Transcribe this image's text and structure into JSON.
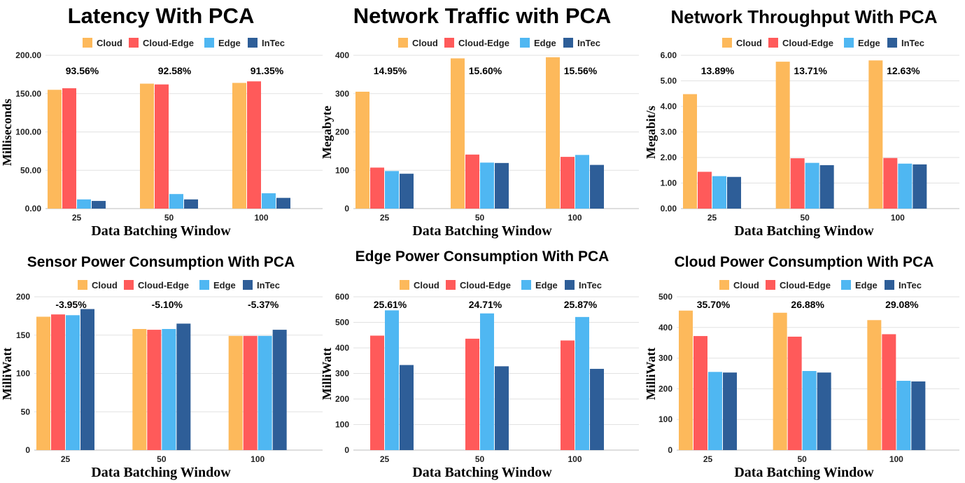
{
  "colors": {
    "Cloud": "#FDB95B",
    "Cloud-Edge": "#FF5A5A",
    "Edge": "#4FB7F2",
    "InTec": "#2E5E98"
  },
  "chart_data": [
    {
      "type": "bar",
      "title": "Latency With PCA",
      "xlabel": "Data Batching Window",
      "ylabel": "Milliseconds",
      "categories": [
        "25",
        "50",
        "100"
      ],
      "yticks": [
        "0.00",
        "50.00",
        "100.00",
        "150.00",
        "200.00"
      ],
      "ylim": [
        0,
        200
      ],
      "legend": "top",
      "annotations": [
        "93.56%",
        "92.58%",
        "91.35%"
      ],
      "series": [
        {
          "name": "Cloud",
          "values": [
            155,
            163,
            164
          ]
        },
        {
          "name": "Cloud-Edge",
          "values": [
            157,
            162,
            166
          ]
        },
        {
          "name": "Edge",
          "values": [
            12,
            19,
            20
          ]
        },
        {
          "name": "InTec",
          "values": [
            10,
            12,
            14
          ]
        }
      ]
    },
    {
      "type": "bar",
      "title": "Network Traffic with PCA",
      "xlabel": "Data Batching Window",
      "ylabel": "Megabyte",
      "categories": [
        "25",
        "50",
        "100"
      ],
      "yticks": [
        "0",
        "100",
        "200",
        "300",
        "400"
      ],
      "ylim": [
        0,
        400
      ],
      "legend": "top",
      "annotations": [
        "14.95%",
        "15.60%",
        "15.56%"
      ],
      "series": [
        {
          "name": "Cloud",
          "values": [
            305,
            392,
            395
          ]
        },
        {
          "name": "Cloud-Edge",
          "values": [
            107,
            141,
            135
          ]
        },
        {
          "name": "Edge",
          "values": [
            98,
            120,
            140
          ]
        },
        {
          "name": "InTec",
          "values": [
            91,
            119,
            114
          ]
        }
      ]
    },
    {
      "type": "bar",
      "title": "Network Throughput With PCA",
      "xlabel": "Data Batching Window",
      "ylabel": "Megabit/s",
      "categories": [
        "25",
        "50",
        "100"
      ],
      "yticks": [
        "0.00",
        "1.00",
        "2.00",
        "3.00",
        "4.00",
        "5.00",
        "6.00"
      ],
      "ylim": [
        0,
        6
      ],
      "legend": "top",
      "annotations": [
        "13.89%",
        "13.71%",
        "12.63%"
      ],
      "series": [
        {
          "name": "Cloud",
          "values": [
            4.48,
            5.75,
            5.8
          ]
        },
        {
          "name": "Cloud-Edge",
          "values": [
            1.44,
            1.97,
            1.98
          ]
        },
        {
          "name": "Edge",
          "values": [
            1.27,
            1.79,
            1.76
          ]
        },
        {
          "name": "InTec",
          "values": [
            1.24,
            1.7,
            1.73
          ]
        }
      ]
    },
    {
      "type": "bar",
      "title": "Sensor Power Consumption With PCA",
      "xlabel": "Data Batching Window",
      "ylabel": "MilliWatt",
      "categories": [
        "25",
        "50",
        "100"
      ],
      "yticks": [
        "0",
        "50",
        "100",
        "150",
        "200"
      ],
      "ylim": [
        0,
        200
      ],
      "legend": "top",
      "annotations": [
        "-3.95%",
        "-5.10%",
        "-5.37%"
      ],
      "series": [
        {
          "name": "Cloud",
          "values": [
            174,
            158,
            149
          ]
        },
        {
          "name": "Cloud-Edge",
          "values": [
            177,
            157,
            149
          ]
        },
        {
          "name": "Edge",
          "values": [
            176,
            158,
            149
          ]
        },
        {
          "name": "InTec",
          "values": [
            184,
            165,
            157
          ]
        }
      ]
    },
    {
      "type": "bar",
      "title": "Edge Power Consumption With PCA",
      "xlabel": "Data Batching Window",
      "ylabel": "MilliWatt",
      "categories": [
        "25",
        "50",
        "100"
      ],
      "yticks": [
        "0",
        "100",
        "200",
        "300",
        "400",
        "500",
        "600"
      ],
      "ylim": [
        0,
        600
      ],
      "legend": "top",
      "annotations": [
        "25.61%",
        "24.71%",
        "25.87%"
      ],
      "series": [
        {
          "name": "Cloud",
          "values": [
            0,
            0,
            0
          ]
        },
        {
          "name": "Cloud-Edge",
          "values": [
            448,
            436,
            429
          ]
        },
        {
          "name": "Edge",
          "values": [
            547,
            535,
            521
          ]
        },
        {
          "name": "InTec",
          "values": [
            333,
            328,
            318
          ]
        }
      ]
    },
    {
      "type": "bar",
      "title": "Cloud Power Consumption With PCA",
      "xlabel": "Data Batching Window",
      "ylabel": "MilliWatt",
      "categories": [
        "25",
        "50",
        "100"
      ],
      "yticks": [
        "0",
        "100",
        "200",
        "300",
        "400",
        "500"
      ],
      "ylim": [
        0,
        500
      ],
      "legend": "top",
      "annotations": [
        "35.70%",
        "26.88%",
        "29.08%"
      ],
      "series": [
        {
          "name": "Cloud",
          "values": [
            455,
            448,
            424
          ]
        },
        {
          "name": "Cloud-Edge",
          "values": [
            372,
            370,
            378
          ]
        },
        {
          "name": "Edge",
          "values": [
            255,
            258,
            226
          ]
        },
        {
          "name": "InTec",
          "values": [
            253,
            253,
            224
          ]
        }
      ]
    }
  ]
}
